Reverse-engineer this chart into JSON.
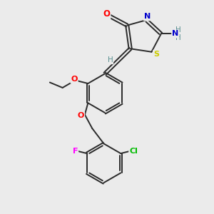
{
  "background_color": "#ebebeb",
  "bond_color": "#2a2a2a",
  "atom_colors": {
    "O": "#ff0000",
    "N": "#0000cc",
    "S": "#cccc00",
    "F": "#ff00ff",
    "Cl": "#00bb00",
    "H": "#5a9090",
    "C": "#2a2a2a"
  },
  "figsize": [
    3.0,
    3.0
  ],
  "dpi": 100
}
